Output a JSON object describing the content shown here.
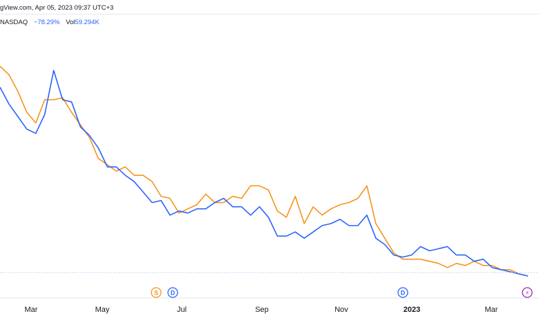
{
  "header": {
    "source_line": "gView.com, Apr 05, 2023 09:37 UTC+3"
  },
  "legend": {
    "exchange": "NASDAQ",
    "change": "−78.29%",
    "vol_label": "Vol",
    "vol_value": "59.294K"
  },
  "chart_data": {
    "type": "line",
    "x_labels": [
      "Mar",
      "May",
      "Jul",
      "Sep",
      "Nov",
      "2023",
      "Mar"
    ],
    "y_range": [
      0,
      100
    ],
    "grid": false,
    "markers": [
      {
        "letter": "S",
        "color": "#f7931a"
      },
      {
        "letter": "D",
        "color": "#2962ff"
      },
      {
        "letter": "D",
        "color": "#2962ff"
      },
      {
        "letter": "⚡",
        "color": "#9c27b0"
      }
    ],
    "series": [
      {
        "color": "#f7931a",
        "values": [
          100,
          96,
          88,
          78,
          73,
          84,
          84,
          85,
          78,
          72,
          66,
          56,
          53,
          50,
          52,
          48,
          48,
          45,
          38,
          37,
          30,
          32,
          34,
          39,
          35,
          35,
          38,
          37,
          43,
          43,
          41,
          31,
          28,
          38,
          25,
          33,
          29,
          32,
          34,
          35,
          37,
          43,
          25,
          18,
          11,
          8,
          8,
          8,
          7,
          6,
          4,
          6,
          5,
          7,
          5,
          5,
          3,
          3,
          1,
          0
        ],
        "color_name": "orange"
      },
      {
        "color": "#2962ff",
        "values": [
          90,
          82,
          76,
          70,
          68,
          77,
          98,
          84,
          83,
          71,
          67,
          61,
          52,
          52,
          48,
          45,
          40,
          35,
          36,
          29,
          31,
          30,
          32,
          32,
          35,
          37,
          33,
          33,
          29,
          33,
          28,
          19,
          19,
          21,
          18,
          21,
          24,
          25,
          27,
          24,
          24,
          29,
          18,
          15,
          10,
          9,
          10,
          14,
          12,
          13,
          14,
          10,
          10,
          7,
          8,
          4,
          3,
          2,
          1,
          0
        ],
        "color_name": "blue"
      }
    ]
  }
}
